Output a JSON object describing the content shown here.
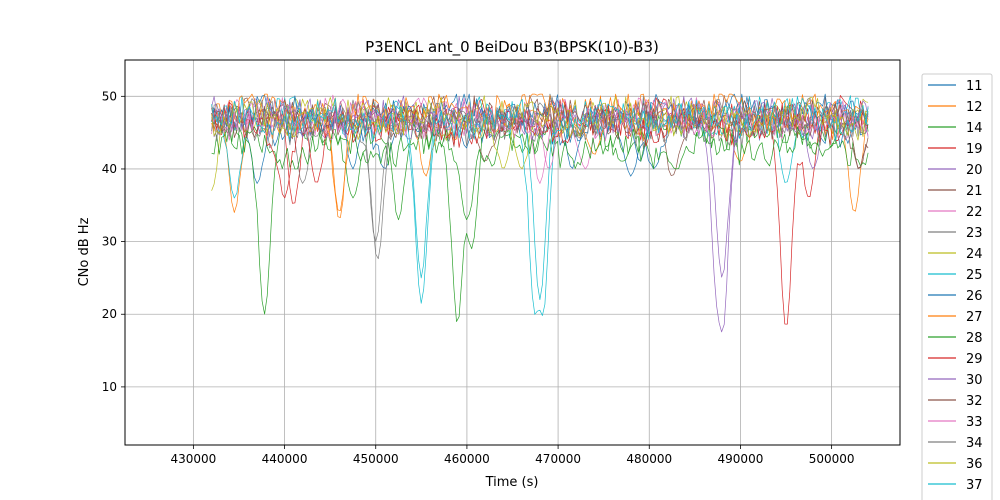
{
  "chart_data": {
    "type": "line",
    "title": "P3ENCL ant_0 BeiDou B3(BPSK(10)-B3)",
    "xlabel": "Time (s)",
    "ylabel": "CNo dB Hz",
    "xlim": [
      422500,
      507500
    ],
    "ylim": [
      2,
      55
    ],
    "xticks": [
      430000,
      440000,
      450000,
      460000,
      470000,
      480000,
      490000,
      500000
    ],
    "yticks": [
      10,
      20,
      30,
      40,
      50
    ],
    "grid": true,
    "legend_position": "right",
    "series": [
      {
        "name": "11",
        "color": "#1f77b4",
        "t_start": 432000,
        "t_end": 504000,
        "base": 46,
        "dips": [
          [
            437000,
            38
          ],
          [
            451000,
            40
          ],
          [
            478000,
            39
          ],
          [
            480500,
            40
          ]
        ]
      },
      {
        "name": "12",
        "color": "#ff7f0e",
        "t_start": 432000,
        "t_end": 504000,
        "base": 47,
        "dips": [
          [
            434500,
            34
          ],
          [
            446000,
            34
          ],
          [
            455500,
            39
          ],
          [
            490000,
            41
          ],
          [
            502500,
            34
          ]
        ]
      },
      {
        "name": "14",
        "color": "#2ca02c",
        "t_start": 432000,
        "t_end": 504000,
        "base": 45,
        "dips": [
          [
            437800,
            20
          ],
          [
            447500,
            36
          ],
          [
            452500,
            33
          ],
          [
            459000,
            18
          ],
          [
            460500,
            29
          ],
          [
            477000,
            41
          ]
        ]
      },
      {
        "name": "19",
        "color": "#d62728",
        "t_start": 432000,
        "t_end": 504000,
        "base": 47,
        "dips": [
          [
            441000,
            35
          ],
          [
            495000,
            18
          ],
          [
            497500,
            36
          ]
        ]
      },
      {
        "name": "20",
        "color": "#9467bd",
        "t_start": 432000,
        "t_end": 504000,
        "base": 47,
        "dips": [
          [
            487500,
            27
          ],
          [
            488000,
            17.5
          ],
          [
            498000,
            40
          ]
        ]
      },
      {
        "name": "21",
        "color": "#8c564b",
        "t_start": 432000,
        "t_end": 504000,
        "base": 47,
        "dips": [
          [
            462000,
            41
          ],
          [
            482500,
            39
          ],
          [
            503000,
            40
          ]
        ]
      },
      {
        "name": "22",
        "color": "#e377c2",
        "t_start": 432000,
        "t_end": 504000,
        "base": 47,
        "dips": [
          [
            468000,
            38
          ],
          [
            473000,
            40
          ]
        ]
      },
      {
        "name": "23",
        "color": "#7f7f7f",
        "t_start": 432000,
        "t_end": 504000,
        "base": 46,
        "dips": [
          [
            450200,
            27.5
          ],
          [
            442000,
            38
          ]
        ]
      },
      {
        "name": "24",
        "color": "#bcbd22",
        "t_start": 432000,
        "t_end": 504000,
        "base": 47,
        "dips": [
          [
            432000,
            37
          ],
          [
            466000,
            40
          ],
          [
            498000,
            46
          ]
        ]
      },
      {
        "name": "25",
        "color": "#17becf",
        "t_start": 432000,
        "t_end": 504000,
        "base": 47,
        "dips": [
          [
            434500,
            36
          ],
          [
            455000,
            21.5
          ],
          [
            467500,
            20
          ],
          [
            468300,
            19.8
          ],
          [
            495000,
            38
          ]
        ]
      },
      {
        "name": "26",
        "color": "#1f77b4",
        "t_start": 432000,
        "t_end": 504000,
        "base": 48,
        "dips": [
          [
            447500,
            40
          ],
          [
            471500,
            40
          ],
          [
            479000,
            41
          ]
        ]
      },
      {
        "name": "27",
        "color": "#ff7f0e",
        "t_start": 432000,
        "t_end": 504000,
        "base": 48,
        "dips": [
          [
            446000,
            33
          ],
          [
            474000,
            42
          ]
        ]
      },
      {
        "name": "28",
        "color": "#2ca02c",
        "t_start": 432000,
        "t_end": 504000,
        "base": 43,
        "dips": [
          [
            460000,
            33
          ],
          [
            483000,
            40
          ]
        ]
      },
      {
        "name": "29",
        "color": "#d62728",
        "t_start": 432000,
        "t_end": 504000,
        "base": 46,
        "dips": [
          [
            440000,
            36
          ],
          [
            443500,
            38
          ]
        ]
      },
      {
        "name": "30",
        "color": "#9467bd",
        "t_start": 432000,
        "t_end": 504000,
        "base": 47,
        "dips": [
          [
            488000,
            25
          ]
        ]
      },
      {
        "name": "32",
        "color": "#8c564b",
        "t_start": 432000,
        "t_end": 504000,
        "base": 47,
        "dips": [
          [
            503000,
            40
          ]
        ]
      },
      {
        "name": "33",
        "color": "#e377c2",
        "t_start": 432000,
        "t_end": 504000,
        "base": 47,
        "dips": [
          [
            469000,
            40
          ]
        ]
      },
      {
        "name": "34",
        "color": "#7f7f7f",
        "t_start": 432000,
        "t_end": 504000,
        "base": 47,
        "dips": [
          [
            450000,
            30
          ]
        ]
      },
      {
        "name": "36",
        "color": "#bcbd22",
        "t_start": 432000,
        "t_end": 504000,
        "base": 47,
        "dips": [
          [
            464000,
            40
          ]
        ]
      },
      {
        "name": "37",
        "color": "#17becf",
        "t_start": 432000,
        "t_end": 504000,
        "base": 47,
        "dips": [
          [
            468000,
            22
          ],
          [
            455000,
            25
          ]
        ]
      }
    ]
  }
}
